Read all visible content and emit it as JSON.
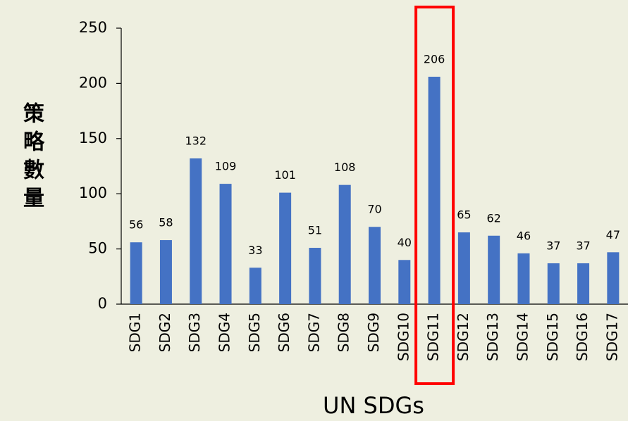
{
  "chart_data": {
    "type": "bar",
    "xlabel": "UN SDGs",
    "ylabel": "策略數量",
    "categories": [
      "SDG1",
      "SDG2",
      "SDG3",
      "SDG4",
      "SDG5",
      "SDG6",
      "SDG7",
      "SDG8",
      "SDG9",
      "SDG10",
      "SDG11",
      "SDG12",
      "SDG13",
      "SDG14",
      "SDG15",
      "SDG16",
      "SDG17"
    ],
    "values": [
      56,
      58,
      132,
      109,
      33,
      101,
      51,
      108,
      70,
      40,
      206,
      65,
      62,
      46,
      37,
      37,
      47
    ],
    "color": "#4472c4",
    "ylim": [
      0,
      250
    ],
    "yticks": [
      0,
      50,
      100,
      150,
      200,
      250
    ],
    "grid": false,
    "highlight": "SDG11",
    "highlight_color": "#ff0000"
  }
}
